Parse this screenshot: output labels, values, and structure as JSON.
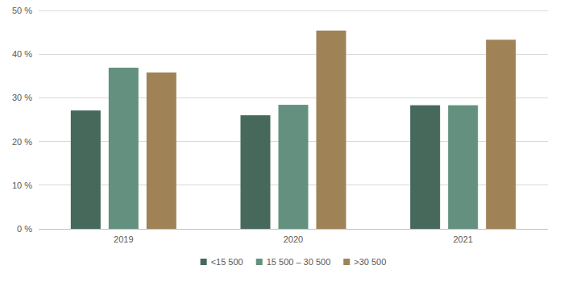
{
  "chart_data": {
    "type": "bar",
    "categories": [
      "2019",
      "2020",
      "2021"
    ],
    "series": [
      {
        "name": "<15 500",
        "color": "#46695c",
        "values": [
          27.1,
          26.0,
          28.3
        ]
      },
      {
        "name": "15 500 – 30 500",
        "color": "#64917f",
        "values": [
          36.9,
          28.4,
          28.3
        ]
      },
      {
        "name": ">30 500",
        "color": "#a08257",
        "values": [
          35.8,
          45.4,
          43.3
        ]
      }
    ],
    "ylim": [
      0,
      50
    ],
    "yticks": [
      {
        "value": 0,
        "label": "0 %"
      },
      {
        "value": 10,
        "label": "10 %"
      },
      {
        "value": 20,
        "label": "20 %"
      },
      {
        "value": 30,
        "label": "30 %"
      },
      {
        "value": 40,
        "label": "40 %"
      },
      {
        "value": 50,
        "label": "50 %"
      }
    ],
    "grid": true,
    "legend": "bottom"
  }
}
